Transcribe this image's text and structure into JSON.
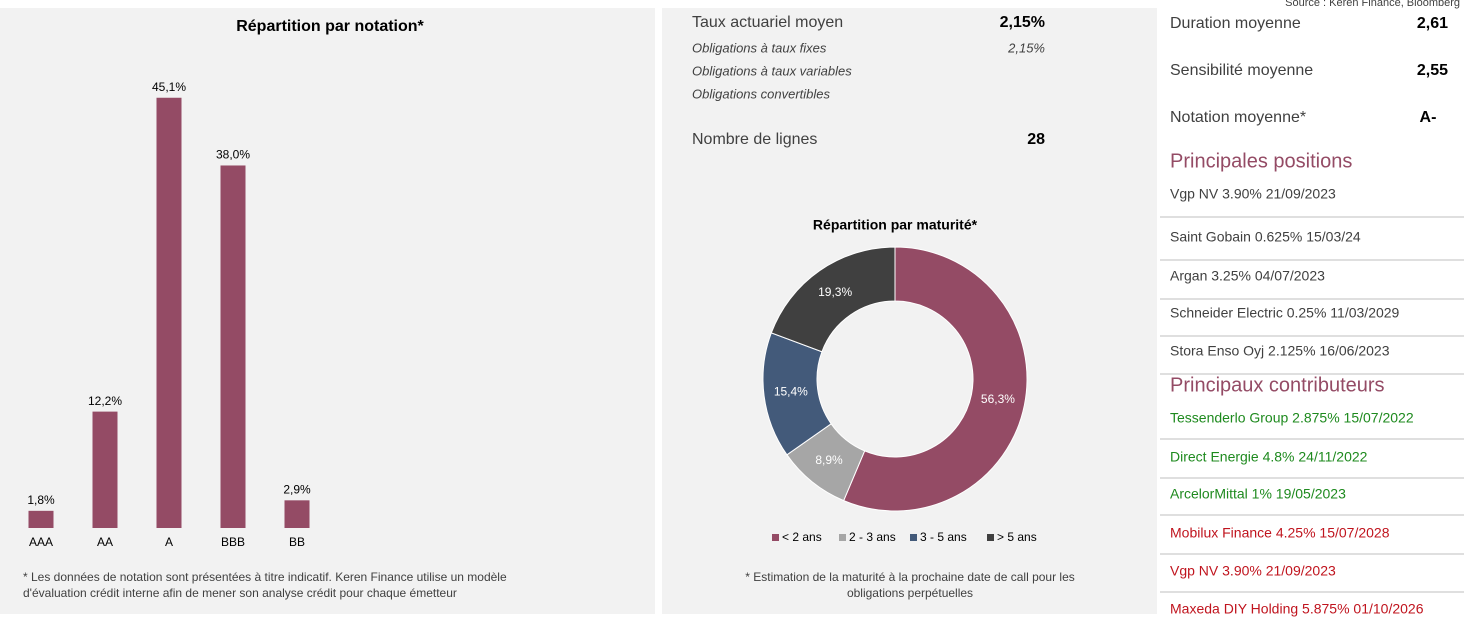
{
  "source": "Source : Keren Finance, Bloomberg",
  "chart_data": [
    {
      "type": "bar",
      "title": "Répartition par notation*",
      "categories": [
        "AAA",
        "AA",
        "A",
        "BBB",
        "BB"
      ],
      "values": [
        1.8,
        12.2,
        45.1,
        38.0,
        2.9
      ],
      "value_labels": [
        "1,8%",
        "12,2%",
        "45,1%",
        "38,0%",
        "2,9%"
      ],
      "color": "#944b65",
      "ylim": [
        0,
        50
      ],
      "footnote": [
        "* Les données de notation sont présentées à titre indicatif. Keren Finance utilise un modèle",
        "d'évaluation crédit interne afin de mener son analyse crédit pour chaque émetteur"
      ]
    },
    {
      "type": "pie",
      "title": "Répartition par maturité*",
      "categories": [
        "< 2 ans",
        "2 - 3 ans",
        "3 - 5 ans",
        "> 5 ans"
      ],
      "values": [
        56.3,
        8.9,
        15.4,
        19.3
      ],
      "value_labels": [
        "56,3%",
        "8,9%",
        "15,4%",
        "19,3%"
      ],
      "colors": [
        "#944b65",
        "#a6a6a6",
        "#435a7a",
        "#404040"
      ],
      "legend": "bottom",
      "footnote": [
        "* Estimation de la maturité à la prochaine date de call pour les",
        "obligations perpétuelles"
      ]
    }
  ],
  "rates": {
    "label": "Taux actuariel moyen",
    "value": "2,15%",
    "sub": [
      {
        "label": "Obligations à taux fixes",
        "value": "2,15%"
      },
      {
        "label": "Obligations à taux variables"
      },
      {
        "label": "Obligations convertibles"
      }
    ],
    "lines_label": "Nombre de lignes",
    "lines_value": "28"
  },
  "metrics": [
    {
      "label": "Duration moyenne",
      "value": "2,61"
    },
    {
      "label": "Sensibilité moyenne",
      "value": "2,55"
    },
    {
      "label": "Notation moyenne*",
      "value": "A-"
    }
  ],
  "positions": {
    "title": "Principales positions",
    "items": [
      "Vgp NV 3.90% 21/09/2023",
      "Saint Gobain  0.625%  15/03/24",
      "Argan 3.25% 04/07/2023",
      "Schneider Electric 0.25% 11/03/2029",
      "Stora Enso Oyj 2.125% 16/06/2023"
    ]
  },
  "contributors": {
    "title": "Principaux contributeurs",
    "items": [
      {
        "label": "Tessenderlo Group 2.875% 15/07/2022",
        "color": "#1e8a1e"
      },
      {
        "label": "Direct Energie 4.8% 24/11/2022",
        "color": "#1e8a1e"
      },
      {
        "label": "ArcelorMittal 1% 19/05/2023",
        "color": "#1e8a1e"
      },
      {
        "label": "Mobilux Finance 4.25% 15/07/2028",
        "color": "#c0141e"
      },
      {
        "label": "Vgp NV 3.90% 21/09/2023",
        "color": "#c0141e"
      },
      {
        "label": "Maxeda DIY Holding 5.875% 01/10/2026",
        "color": "#c0141e"
      }
    ]
  }
}
